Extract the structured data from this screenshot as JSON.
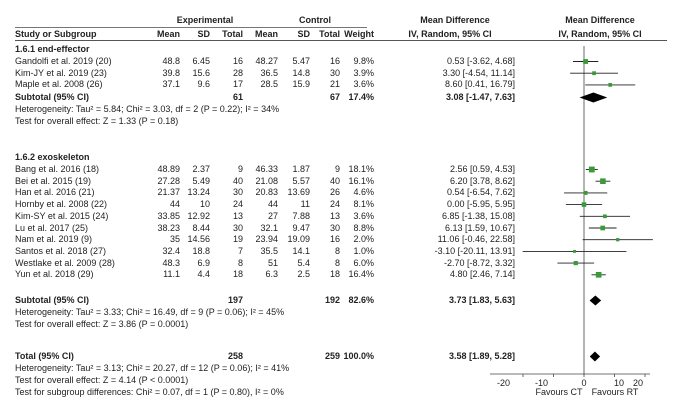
{
  "header": {
    "group1": "Experimental",
    "group2": "Control",
    "md_num": "Mean Difference",
    "md_plot": "Mean Difference",
    "study": "Study or Subgroup",
    "mean1": "Mean",
    "sd1": "SD",
    "total1": "Total",
    "mean2": "Mean",
    "sd2": "SD",
    "total2": "Total",
    "weight": "Weight",
    "method_num": "IV, Random, 95% CI",
    "method_plot": "IV, Random, 95% CI"
  },
  "subgroup1": {
    "title": "1.6.1 end-effector",
    "studies": [
      {
        "name": "Gandolfi et al. 2019 (20)",
        "m1": "48.8",
        "sd1": "6.45",
        "n1": "16",
        "m2": "48.27",
        "sd2": "5.47",
        "n2": "16",
        "w": "9.8%",
        "ci": "0.53 [-3.62, 4.68]"
      },
      {
        "name": "Kim-JY et al. 2019 (23)",
        "m1": "39.8",
        "sd1": "15.6",
        "n1": "28",
        "m2": "36.5",
        "sd2": "14.8",
        "n2": "30",
        "w": "3.9%",
        "ci": "3.30 [-4.54, 11.14]"
      },
      {
        "name": "Maple et al. 2008 (26)",
        "m1": "37.1",
        "sd1": "9.6",
        "n1": "17",
        "m2": "28.5",
        "sd2": "15.9",
        "n2": "21",
        "w": "3.6%",
        "ci": "8.60 [0.41, 16.79]"
      }
    ],
    "subtotal": {
      "label": "Subtotal (95% CI)",
      "n1": "61",
      "n2": "67",
      "w": "17.4%",
      "ci": "3.08 [-1.47, 7.63]"
    },
    "heterogeneity": "Heterogeneity: Tau² = 5.84; Chi² = 3.03, df = 2 (P = 0.22); I² = 34%",
    "overall": "Test for overall effect: Z = 1.33 (P = 0.18)"
  },
  "subgroup2": {
    "title": "1.6.2 exoskeleton",
    "studies": [
      {
        "name": "Bang et al. 2016 (18)",
        "m1": "48.89",
        "sd1": "2.37",
        "n1": "9",
        "m2": "46.33",
        "sd2": "1.87",
        "n2": "9",
        "w": "18.1%",
        "ci": "2.56 [0.59, 4.53]"
      },
      {
        "name": "Bei et al. 2015 (19)",
        "m1": "27.28",
        "sd1": "5.49",
        "n1": "40",
        "m2": "21.08",
        "sd2": "5.57",
        "n2": "40",
        "w": "16.1%",
        "ci": "6.20 [3.78, 8.62]"
      },
      {
        "name": "Han et al. 2016 (21)",
        "m1": "21.37",
        "sd1": "13.24",
        "n1": "30",
        "m2": "20.83",
        "sd2": "13.69",
        "n2": "26",
        "w": "4.6%",
        "ci": "0.54 [-6.54, 7.62]"
      },
      {
        "name": "Hornby et al. 2008 (22)",
        "m1": "44",
        "sd1": "10",
        "n1": "24",
        "m2": "44",
        "sd2": "11",
        "n2": "24",
        "w": "8.1%",
        "ci": "0.00 [-5.95, 5.95]"
      },
      {
        "name": "Kim-SY et al. 2015 (24)",
        "m1": "33.85",
        "sd1": "12.92",
        "n1": "13",
        "m2": "27",
        "sd2": "7.88",
        "n2": "13",
        "w": "3.6%",
        "ci": "6.85 [-1.38, 15.08]"
      },
      {
        "name": "Lu et al. 2017 (25)",
        "m1": "38.23",
        "sd1": "8.44",
        "n1": "30",
        "m2": "32.1",
        "sd2": "9.47",
        "n2": "30",
        "w": "8.8%",
        "ci": "6.13 [1.59, 10.67]"
      },
      {
        "name": "Nam et al. 2019 (9)",
        "m1": "35",
        "sd1": "14.56",
        "n1": "19",
        "m2": "23.94",
        "sd2": "19.09",
        "n2": "16",
        "w": "2.0%",
        "ci": "11.06 [-0.46, 22.58]"
      },
      {
        "name": "Santos et al. 2018 (27)",
        "m1": "32.4",
        "sd1": "18.8",
        "n1": "7",
        "m2": "35.5",
        "sd2": "14.1",
        "n2": "8",
        "w": "1.0%",
        "ci": "-3.10 [-20.11, 13.91]"
      },
      {
        "name": "Westlake et al. 2009 (28)",
        "m1": "48.3",
        "sd1": "6.9",
        "n1": "8",
        "m2": "51",
        "sd2": "5.4",
        "n2": "8",
        "w": "6.0%",
        "ci": "-2.70 [-8.72, 3.32]"
      },
      {
        "name": "Yun et al. 2018 (29)",
        "m1": "11.1",
        "sd1": "4.4",
        "n1": "18",
        "m2": "6.3",
        "sd2": "2.5",
        "n2": "18",
        "w": "16.4%",
        "ci": "4.80 [2.46, 7.14]"
      }
    ],
    "subtotal": {
      "label": "Subtotal (95% CI)",
      "n1": "197",
      "n2": "192",
      "w": "82.6%",
      "ci": "3.73 [1.83, 5.63]"
    },
    "heterogeneity": "Heterogeneity: Tau² = 3.33; Chi² = 16.49, df = 9 (P = 0.06); I² = 45%",
    "overall": "Test for overall effect: Z = 3.86 (P = 0.0001)"
  },
  "total": {
    "label": "Total (95% CI)",
    "n1": "258",
    "n2": "259",
    "w": "100.0%",
    "ci": "3.58 [1.89, 5.28]",
    "heterogeneity": "Heterogeneity: Tau² = 3.13; Chi² = 20.27, df = 12 (P = 0.06); I² = 41%",
    "overall": "Test for overall effect: Z = 4.14 (P < 0.0001)",
    "subgroup_diff": "Test for subgroup differences: Chi² = 0.07, df = 1 (P = 0.80), I² = 0%"
  },
  "axis": {
    "ticks": [
      "-20",
      "-10",
      "0",
      "10",
      "20"
    ],
    "left_label": "Favours CT",
    "right_label": "Favours RT"
  },
  "chart_data": {
    "type": "scatter",
    "xlim": [
      -25,
      25
    ],
    "ticks": [
      -20,
      -10,
      0,
      10,
      20
    ],
    "studies": [
      {
        "md": 0.53,
        "lo": -3.62,
        "hi": 4.68,
        "w": 9.8
      },
      {
        "md": 3.3,
        "lo": -4.54,
        "hi": 11.14,
        "w": 3.9
      },
      {
        "md": 8.6,
        "lo": 0.41,
        "hi": 16.79,
        "w": 3.6
      },
      {
        "md": 2.56,
        "lo": 0.59,
        "hi": 4.53,
        "w": 18.1
      },
      {
        "md": 6.2,
        "lo": 3.78,
        "hi": 8.62,
        "w": 16.1
      },
      {
        "md": 0.54,
        "lo": -6.54,
        "hi": 7.62,
        "w": 4.6
      },
      {
        "md": 0.0,
        "lo": -5.95,
        "hi": 5.95,
        "w": 8.1
      },
      {
        "md": 6.85,
        "lo": -1.38,
        "hi": 15.08,
        "w": 3.6
      },
      {
        "md": 6.13,
        "lo": 1.59,
        "hi": 10.67,
        "w": 8.8
      },
      {
        "md": 11.06,
        "lo": -0.46,
        "hi": 22.58,
        "w": 2.0
      },
      {
        "md": -3.1,
        "lo": -20.11,
        "hi": 13.91,
        "w": 1.0
      },
      {
        "md": -2.7,
        "lo": -8.72,
        "hi": 3.32,
        "w": 6.0
      },
      {
        "md": 4.8,
        "lo": 2.46,
        "hi": 7.14,
        "w": 16.4
      }
    ],
    "diamonds": [
      {
        "md": 3.08,
        "lo": -1.47,
        "hi": 7.63
      },
      {
        "md": 3.73,
        "lo": 1.83,
        "hi": 5.63
      },
      {
        "md": 3.58,
        "lo": 1.89,
        "hi": 5.28
      }
    ],
    "colors": {
      "marker": "#3a9a3a",
      "line": "#222222"
    }
  }
}
